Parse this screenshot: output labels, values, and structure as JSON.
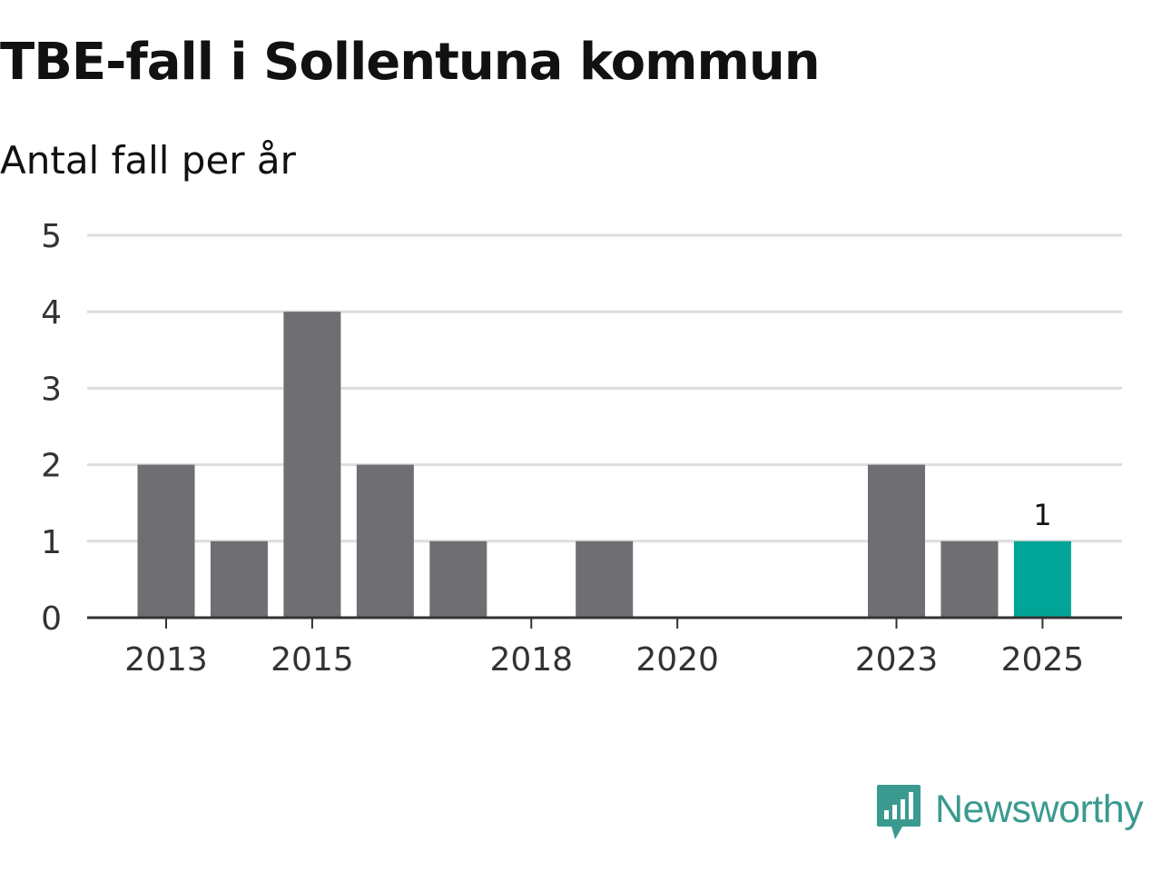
{
  "chart_data": {
    "type": "bar",
    "title": "TBE-fall i Sollentuna kommun",
    "subtitle": "Antal fall per år",
    "categories": [
      "2013",
      "2014",
      "2015",
      "2016",
      "2017",
      "2018",
      "2019",
      "2020",
      "2021",
      "2022",
      "2023",
      "2024",
      "2025"
    ],
    "values": [
      2,
      1,
      4,
      2,
      1,
      0,
      1,
      0,
      0,
      0,
      2,
      1,
      1
    ],
    "x_tick_labels": [
      "2013",
      "2015",
      "2018",
      "2020",
      "2023",
      "2025"
    ],
    "y_ticks": [
      0,
      1,
      2,
      3,
      4,
      5
    ],
    "ylim": [
      0,
      5
    ],
    "highlight_index": 12,
    "highlight_label": "1",
    "xlabel": "",
    "ylabel": "",
    "grid": true,
    "colors": {
      "bar": "#6f6e73",
      "highlight": "#00a597",
      "grid": "#dddddd",
      "axis": "#333333"
    }
  },
  "brand": {
    "name": "Newsworthy",
    "logo_icon": "newsworthy-logo-icon",
    "color": "#3a9a8f"
  }
}
